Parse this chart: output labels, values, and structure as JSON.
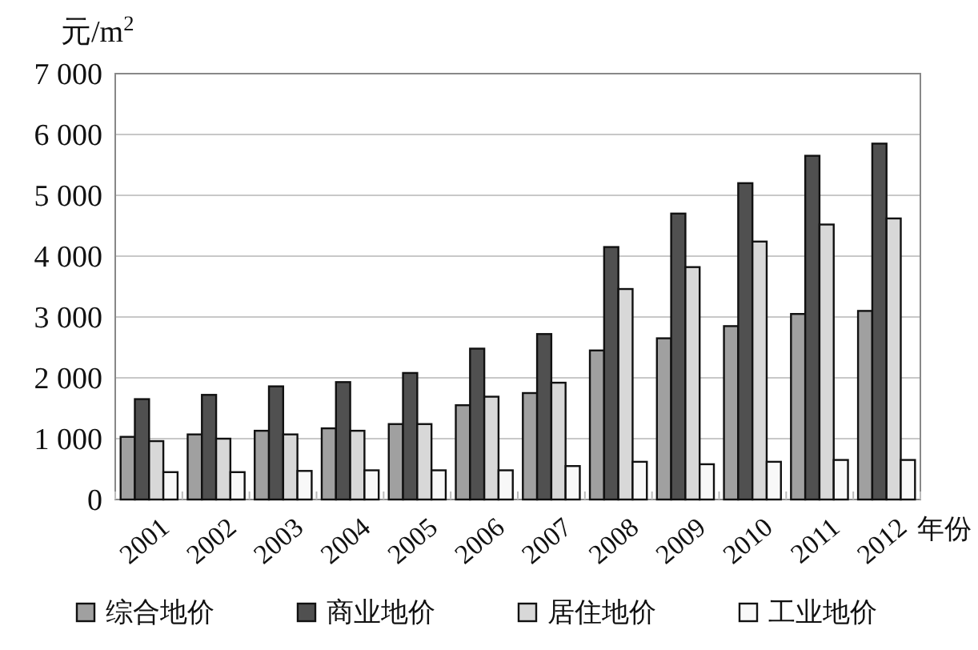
{
  "chart_data": {
    "type": "bar",
    "ylabel": "元/m$^{2}$",
    "xlabel": "年份",
    "categories": [
      "2001",
      "2002",
      "2003",
      "2004",
      "2005",
      "2006",
      "2007",
      "2008",
      "2009",
      "2010",
      "2011",
      "2012"
    ],
    "series": [
      {
        "name": "综合地价",
        "color": "#a0a0a0",
        "values": [
          1030,
          1070,
          1130,
          1170,
          1240,
          1550,
          1750,
          2450,
          2650,
          2850,
          3050,
          3100
        ]
      },
      {
        "name": "商业地价",
        "color": "#505050",
        "values": [
          1650,
          1720,
          1860,
          1930,
          2080,
          2480,
          2720,
          4150,
          4700,
          5200,
          5650,
          5850
        ]
      },
      {
        "name": "居住地价",
        "color": "#d8d8d8",
        "values": [
          960,
          1000,
          1070,
          1130,
          1240,
          1690,
          1920,
          3460,
          3820,
          4240,
          4520,
          4620
        ]
      },
      {
        "name": "工业地价",
        "color": "#f8f8f8",
        "values": [
          450,
          450,
          470,
          480,
          480,
          480,
          550,
          620,
          580,
          620,
          650,
          650
        ]
      }
    ],
    "ylim": [
      0,
      7000
    ],
    "yticks": [
      0,
      {
        "value": 1000,
        "label": "1 000"
      },
      {
        "value": 2000,
        "label": "2 000"
      },
      {
        "value": 3000,
        "label": "3 000"
      },
      {
        "value": 4000,
        "label": "4 000"
      },
      {
        "value": 5000,
        "label": "5 000"
      },
      {
        "value": 6000,
        "label": "6 000"
      },
      {
        "value": 7000,
        "label": "7 000"
      }
    ],
    "grid": "y",
    "legend": "bottom"
  }
}
